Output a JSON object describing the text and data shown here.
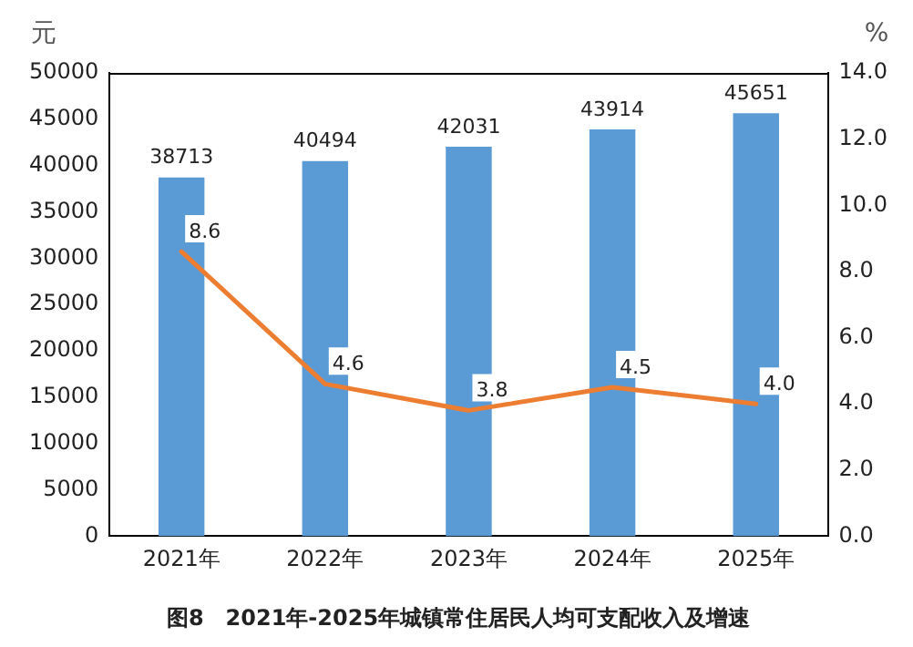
{
  "chart_data": {
    "type": "bar",
    "title": "图8　2021年-2025年城镇常住居民人均可支配收入及增速",
    "ylabel": "元",
    "y2label": "%",
    "categories": [
      "2021年",
      "2022年",
      "2023年",
      "2024年",
      "2025年"
    ],
    "series": [
      {
        "color": "#5b9bd5",
        "values": [
          38713,
          40494,
          42031,
          43914,
          45651
        ],
        "value_labels": [
          "38713",
          "40494",
          "42031",
          "43914",
          "45651"
        ]
      },
      {
        "type": "line",
        "axis": "y2",
        "color": "#ed7d31",
        "values": [
          8.6,
          4.6,
          3.8,
          4.5,
          4.0
        ],
        "value_labels": [
          "8.6",
          "4.6",
          "3.8",
          "4.5",
          "4.0"
        ]
      }
    ],
    "ylim": [
      0,
      50000
    ],
    "yticks": [
      0,
      5000,
      10000,
      15000,
      20000,
      25000,
      30000,
      35000,
      40000,
      45000,
      50000
    ],
    "y2lim": [
      0,
      14
    ],
    "y2ticks": [
      {
        "value": 0,
        "label": "0.0"
      },
      {
        "value": 2,
        "label": "2.0"
      },
      {
        "value": 4,
        "label": "4.0"
      },
      {
        "value": 6,
        "label": "6.0"
      },
      {
        "value": 8,
        "label": "8.0"
      },
      {
        "value": 10,
        "label": "10.0"
      },
      {
        "value": 12,
        "label": "12.0"
      },
      {
        "value": 14,
        "label": "14.0"
      }
    ],
    "grid": false,
    "legend": false,
    "marker": "none"
  }
}
